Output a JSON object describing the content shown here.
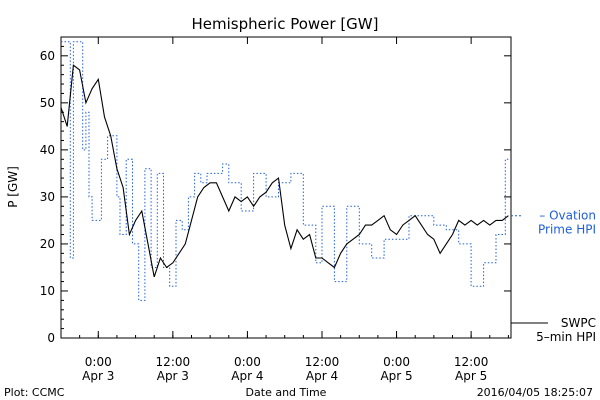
{
  "chart_data": {
    "type": "line",
    "title": "Hemispheric Power [GW]",
    "ylabel": "P [GW]",
    "xlabel": "Date and Time",
    "ylim": [
      0,
      64
    ],
    "xlim": [
      "2016-04-02T18:00",
      "2016-04-05T18:25"
    ],
    "yticks": [
      0,
      10,
      20,
      30,
      40,
      50,
      60
    ],
    "xticks": [
      {
        "t": "2016-04-03T00:00",
        "time": "0:00",
        "date": "Apr 3"
      },
      {
        "t": "2016-04-03T12:00",
        "time": "12:00",
        "date": "Apr 3"
      },
      {
        "t": "2016-04-04T00:00",
        "time": "0:00",
        "date": "Apr 4"
      },
      {
        "t": "2016-04-04T12:00",
        "time": "12:00",
        "date": "Apr 4"
      },
      {
        "t": "2016-04-05T00:00",
        "time": "0:00",
        "date": "Apr 5"
      },
      {
        "t": "2016-04-05T12:00",
        "time": "12:00",
        "date": "Apr 5"
      }
    ],
    "grid": false,
    "legend_placement": "right",
    "series": [
      {
        "name": "Ovation Prime HPI",
        "label_lines": [
          "– Ovation",
          "Prime HPI"
        ],
        "color": "#1f5fd6",
        "style": "dotted-step",
        "x": [
          "2016-04-02T18:00",
          "2016-04-02T18:30",
          "2016-04-02T19:00",
          "2016-04-02T19:30",
          "2016-04-02T20:00",
          "2016-04-02T20:30",
          "2016-04-02T21:00",
          "2016-04-02T21:30",
          "2016-04-02T22:00",
          "2016-04-02T22:30",
          "2016-04-02T23:00",
          "2016-04-02T23:30",
          "2016-04-03T00:00",
          "2016-04-03T00:30",
          "2016-04-03T01:00",
          "2016-04-03T01:30",
          "2016-04-03T02:00",
          "2016-04-03T02:30",
          "2016-04-03T03:00",
          "2016-04-03T03:30",
          "2016-04-03T04:00",
          "2016-04-03T04:30",
          "2016-04-03T05:00",
          "2016-04-03T05:30",
          "2016-04-03T06:00",
          "2016-04-03T06:30",
          "2016-04-03T07:00",
          "2016-04-03T07:30",
          "2016-04-03T08:00",
          "2016-04-03T08:30",
          "2016-04-03T09:00",
          "2016-04-03T09:30",
          "2016-04-03T10:00",
          "2016-04-03T10:30",
          "2016-04-03T11:00",
          "2016-04-03T11:30",
          "2016-04-03T12:00",
          "2016-04-03T12:30",
          "2016-04-03T13:00",
          "2016-04-03T13:30",
          "2016-04-03T14:00",
          "2016-04-03T14:30",
          "2016-04-03T15:00",
          "2016-04-03T15:30",
          "2016-04-03T16:00",
          "2016-04-03T16:30",
          "2016-04-03T17:00",
          "2016-04-03T17:30",
          "2016-04-03T18:00",
          "2016-04-03T19:00",
          "2016-04-03T20:00",
          "2016-04-03T21:00",
          "2016-04-03T22:00",
          "2016-04-03T23:00",
          "2016-04-04T00:00",
          "2016-04-04T01:00",
          "2016-04-04T02:00",
          "2016-04-04T03:00",
          "2016-04-04T04:00",
          "2016-04-04T05:00",
          "2016-04-04T06:00",
          "2016-04-04T07:00",
          "2016-04-04T08:00",
          "2016-04-04T09:00",
          "2016-04-04T10:00",
          "2016-04-04T11:00",
          "2016-04-04T11:30",
          "2016-04-04T12:00",
          "2016-04-04T13:00",
          "2016-04-04T14:00",
          "2016-04-04T15:00",
          "2016-04-04T16:00",
          "2016-04-04T17:00",
          "2016-04-04T18:00",
          "2016-04-04T19:00",
          "2016-04-04T20:00",
          "2016-04-04T21:00",
          "2016-04-04T22:00",
          "2016-04-04T23:00",
          "2016-04-05T00:00",
          "2016-04-05T01:00",
          "2016-04-05T02:00",
          "2016-04-05T03:00",
          "2016-04-05T04:00",
          "2016-04-05T05:00",
          "2016-04-05T06:00",
          "2016-04-05T07:00",
          "2016-04-05T08:00",
          "2016-04-05T09:00",
          "2016-04-05T10:00",
          "2016-04-05T11:00",
          "2016-04-05T12:00",
          "2016-04-05T13:00",
          "2016-04-05T14:00",
          "2016-04-05T15:00",
          "2016-04-05T16:00",
          "2016-04-05T17:00",
          "2016-04-05T17:30",
          "2016-04-05T18:00"
        ],
        "values": [
          63,
          63,
          63,
          17,
          63,
          63,
          63,
          40,
          48,
          30,
          25,
          25,
          25,
          38,
          38,
          43,
          43,
          43,
          30,
          22,
          22,
          38,
          38,
          20,
          20,
          8,
          8,
          36,
          36,
          15,
          15,
          35,
          35,
          15,
          15,
          11,
          11,
          25,
          25,
          23,
          23,
          30,
          30,
          35,
          35,
          33,
          33,
          35,
          35,
          35,
          37,
          33,
          33,
          27,
          27,
          35,
          35,
          30,
          30,
          33,
          33,
          35,
          35,
          24,
          24,
          16,
          16,
          28,
          28,
          12,
          12,
          28,
          28,
          20,
          20,
          17,
          17,
          21,
          21,
          21,
          21,
          26,
          26,
          26,
          26,
          24,
          24,
          23,
          23,
          20,
          20,
          11,
          11,
          16,
          16,
          22,
          22,
          38,
          38
        ]
      },
      {
        "name": "SWPC 5-min HPI",
        "label_lines": [
          "SWPC",
          "5–min HPI"
        ],
        "color": "#000000",
        "style": "solid",
        "x": [
          "2016-04-02T18:00",
          "2016-04-02T19:00",
          "2016-04-02T20:00",
          "2016-04-02T21:00",
          "2016-04-02T22:00",
          "2016-04-02T23:00",
          "2016-04-03T00:00",
          "2016-04-03T01:00",
          "2016-04-03T02:00",
          "2016-04-03T03:00",
          "2016-04-03T04:00",
          "2016-04-03T05:00",
          "2016-04-03T06:00",
          "2016-04-03T07:00",
          "2016-04-03T08:00",
          "2016-04-03T09:00",
          "2016-04-03T10:00",
          "2016-04-03T11:00",
          "2016-04-03T12:00",
          "2016-04-03T13:00",
          "2016-04-03T14:00",
          "2016-04-03T15:00",
          "2016-04-03T16:00",
          "2016-04-03T17:00",
          "2016-04-03T18:00",
          "2016-04-03T19:00",
          "2016-04-03T20:00",
          "2016-04-03T21:00",
          "2016-04-03T22:00",
          "2016-04-03T23:00",
          "2016-04-04T00:00",
          "2016-04-04T01:00",
          "2016-04-04T02:00",
          "2016-04-04T03:00",
          "2016-04-04T04:00",
          "2016-04-04T05:00",
          "2016-04-04T06:00",
          "2016-04-04T07:00",
          "2016-04-04T08:00",
          "2016-04-04T09:00",
          "2016-04-04T10:00",
          "2016-04-04T11:00",
          "2016-04-04T12:00",
          "2016-04-04T13:00",
          "2016-04-04T14:00",
          "2016-04-04T15:00",
          "2016-04-04T16:00",
          "2016-04-04T17:00",
          "2016-04-04T18:00",
          "2016-04-04T19:00",
          "2016-04-04T20:00",
          "2016-04-04T21:00",
          "2016-04-04T22:00",
          "2016-04-04T23:00",
          "2016-04-05T00:00",
          "2016-04-05T01:00",
          "2016-04-05T02:00",
          "2016-04-05T03:00",
          "2016-04-05T04:00",
          "2016-04-05T05:00",
          "2016-04-05T06:00",
          "2016-04-05T07:00",
          "2016-04-05T08:00",
          "2016-04-05T09:00",
          "2016-04-05T10:00",
          "2016-04-05T11:00",
          "2016-04-05T12:00",
          "2016-04-05T13:00",
          "2016-04-05T14:00",
          "2016-04-05T15:00",
          "2016-04-05T16:00",
          "2016-04-05T17:00",
          "2016-04-05T18:00"
        ],
        "values": [
          49,
          45,
          58,
          57,
          50,
          53,
          55,
          47,
          43,
          36,
          32,
          22,
          25,
          27,
          20,
          13,
          17,
          15,
          16,
          18,
          20,
          25,
          30,
          32,
          33,
          33,
          30,
          27,
          30,
          29,
          30,
          28,
          30,
          31,
          33,
          34,
          24,
          19,
          23,
          21,
          22,
          17,
          17,
          16,
          15,
          18,
          20,
          21,
          22,
          24,
          24,
          25,
          26,
          23,
          22,
          24,
          25,
          26,
          24,
          22,
          21,
          18,
          20,
          22,
          25,
          24,
          25,
          24,
          25,
          24,
          25,
          25,
          26
        ]
      }
    ]
  },
  "footer": {
    "plot_credit": "Plot: CCMC",
    "timestamp": "2016/04/05 18:25:07"
  }
}
